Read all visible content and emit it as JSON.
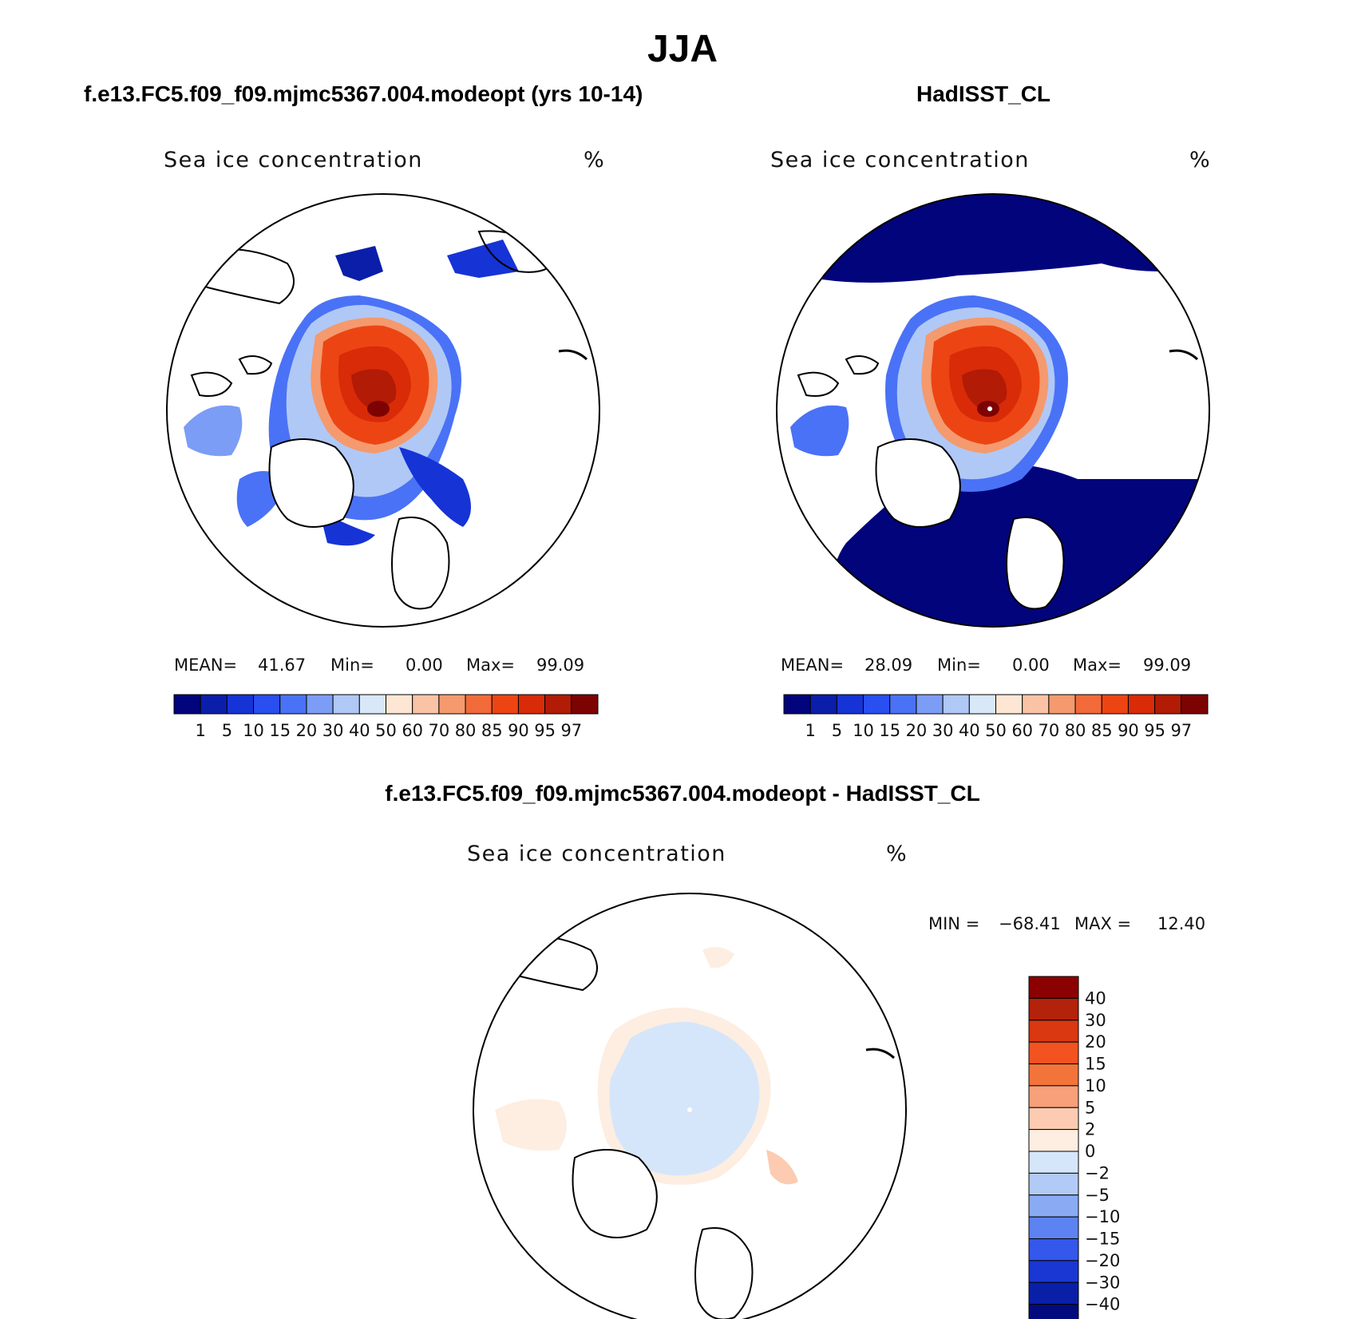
{
  "figure": {
    "season": "JJA",
    "panels": [
      {
        "case_title": "f.e13.FC5.f09_f09.mjmc5367.004.modeopt (yrs 10-14)",
        "variable": "Sea ice concentration",
        "units": "%",
        "mean_label": "MEAN=",
        "mean": "41.67",
        "min_label": "Min=",
        "min": "0.00",
        "max_label": "Max=",
        "max": "99.09"
      },
      {
        "case_title": "HadISST_CL",
        "variable": "Sea ice concentration",
        "units": "%",
        "mean_label": "MEAN=",
        "mean": "28.09",
        "min_label": "Min=",
        "min": "0.00",
        "max_label": "Max=",
        "max": "99.09"
      }
    ],
    "diff_panel": {
      "title": "f.e13.FC5.f09_f09.mjmc5367.004.modeopt - HadISST_CL",
      "variable": "Sea ice concentration",
      "units": "%",
      "min_label": "MIN =",
      "min": "−68.41",
      "max_label": "MAX =",
      "max": "12.40"
    }
  },
  "colorbars": {
    "horizontal_levels": [
      "1",
      "5",
      "10",
      "15",
      "20",
      "30",
      "40",
      "50",
      "60",
      "70",
      "80",
      "85",
      "90",
      "95",
      "97"
    ],
    "horizontal_colors": [
      "#02047c",
      "#0b1ea9",
      "#1633d6",
      "#2a4ff0",
      "#4a72f6",
      "#7c9df5",
      "#b0c8f6",
      "#d9e8f9",
      "#fde7d4",
      "#fbc3a5",
      "#f49a6e",
      "#f26a3a",
      "#ec4513",
      "#d92b08",
      "#b21b05",
      "#7d0303"
    ],
    "diff_levels": [
      "40",
      "30",
      "20",
      "15",
      "10",
      "5",
      "2",
      "0",
      "−2",
      "−5",
      "−10",
      "−15",
      "−20",
      "−30",
      "−40"
    ],
    "diff_colors": [
      "#8b0000",
      "#b3220a",
      "#d93810",
      "#f25320",
      "#f2743a",
      "#f7a079",
      "#fccbb1",
      "#fdeee1",
      "#d6e6fa",
      "#b2cbf6",
      "#8aabf4",
      "#5d82f1",
      "#3457ec",
      "#1a37d3",
      "#0a1fa8",
      "#030a7d"
    ]
  }
}
